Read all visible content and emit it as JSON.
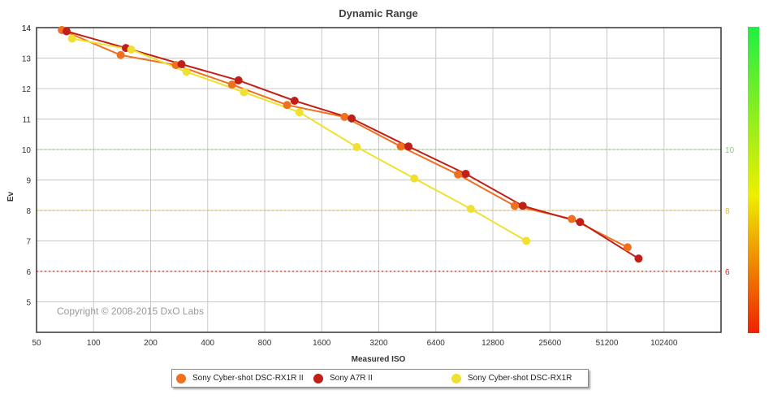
{
  "chart_data": {
    "type": "line",
    "title": "Dynamic Range",
    "xlabel": "Measured ISO",
    "ylabel": "Ev",
    "xscale": "log2",
    "xlim": [
      50,
      204800
    ],
    "ylim": [
      4,
      14
    ],
    "x_ticks": [
      "50",
      "100",
      "200",
      "400",
      "800",
      "1600",
      "3200",
      "6400",
      "12800",
      "25600",
      "51200",
      "102400"
    ],
    "y_ticks": [
      "5",
      "6",
      "7",
      "8",
      "9",
      "10",
      "11",
      "12",
      "13",
      "14"
    ],
    "grid": true,
    "legend_position": "bottom",
    "copyright": "Copyright © 2008-2015 DxO Labs",
    "reference_lines": [
      {
        "value": 10,
        "label": "10",
        "color": "#80d860"
      },
      {
        "value": 8,
        "label": "8",
        "color": "#d8c040"
      },
      {
        "value": 6,
        "label": "6",
        "color": "#d03020"
      }
    ],
    "color_scale": {
      "top": "#22ee44",
      "middle": "#eeee00",
      "bottom": "#ee2200"
    },
    "series": [
      {
        "name": "Sony Cyber-shot DSC-RX1R II",
        "color": "#f07020",
        "points": [
          [
            68,
            13.92
          ],
          [
            139,
            13.1
          ],
          [
            272,
            12.77
          ],
          [
            538,
            12.13
          ],
          [
            1050,
            11.46
          ],
          [
            2110,
            11.07
          ],
          [
            4180,
            10.1
          ],
          [
            8380,
            9.18
          ],
          [
            16700,
            8.15
          ],
          [
            33400,
            7.72
          ],
          [
            65800,
            6.79
          ]
        ]
      },
      {
        "name": "Sony A7R II",
        "color": "#c02018",
        "points": [
          [
            72,
            13.88
          ],
          [
            148,
            13.33
          ],
          [
            291,
            12.8
          ],
          [
            582,
            12.27
          ],
          [
            1150,
            11.6
          ],
          [
            2300,
            11.02
          ],
          [
            4590,
            10.1
          ],
          [
            9210,
            9.2
          ],
          [
            18400,
            8.15
          ],
          [
            36900,
            7.62
          ],
          [
            75200,
            6.42
          ]
        ]
      },
      {
        "name": "Sony Cyber-shot DSC-RX1R",
        "color": "#f0e030",
        "points": [
          [
            77,
            13.64
          ],
          [
            158,
            13.28
          ],
          [
            309,
            12.55
          ],
          [
            622,
            11.88
          ],
          [
            1220,
            11.22
          ],
          [
            2450,
            10.08
          ],
          [
            4930,
            9.05
          ],
          [
            9790,
            8.05
          ],
          [
            19200,
            7.0
          ]
        ]
      }
    ]
  }
}
